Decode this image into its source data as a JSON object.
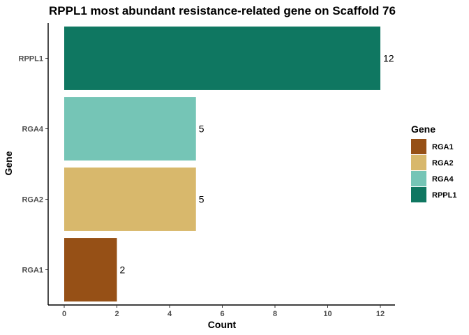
{
  "chart_data": {
    "type": "bar",
    "orientation": "horizontal",
    "title": "RPPL1 most abundant resistance-related gene on Scaffold 76",
    "xlabel": "Count",
    "ylabel": "Gene",
    "categories": [
      "RGA1",
      "RGA2",
      "RGA4",
      "RPPL1"
    ],
    "values": [
      2,
      5,
      5,
      12
    ],
    "colors": [
      "#965016",
      "#d8b86c",
      "#75c5b6",
      "#0f7761"
    ],
    "data_labels": [
      "2",
      "5",
      "5",
      "12"
    ],
    "xlim": [
      0,
      12.6
    ],
    "xticks": [
      0,
      2,
      4,
      6,
      8,
      10,
      12
    ],
    "xtick_labels": [
      "0",
      "2",
      "4",
      "6",
      "8",
      "10",
      "12"
    ],
    "grid": false,
    "legend": {
      "title": "Gene",
      "placement": "right",
      "entries": [
        "RGA1",
        "RGA2",
        "RGA4",
        "RPPL1"
      ]
    }
  }
}
